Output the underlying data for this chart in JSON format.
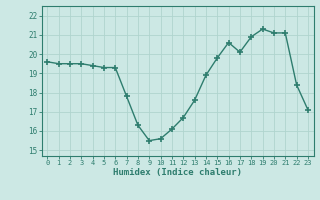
{
  "x": [
    0,
    1,
    2,
    3,
    4,
    5,
    6,
    7,
    8,
    9,
    10,
    11,
    12,
    13,
    14,
    15,
    16,
    17,
    18,
    19,
    20,
    21,
    22,
    23
  ],
  "y": [
    19.6,
    19.5,
    19.5,
    19.5,
    19.4,
    19.3,
    19.3,
    17.8,
    16.3,
    15.5,
    15.6,
    16.1,
    16.7,
    17.6,
    18.9,
    19.8,
    20.6,
    20.1,
    20.9,
    21.3,
    21.1,
    21.1,
    18.4,
    17.1
  ],
  "xlabel": "Humidex (Indice chaleur)",
  "xlim": [
    -0.5,
    23.5
  ],
  "ylim": [
    14.7,
    22.5
  ],
  "yticks": [
    15,
    16,
    17,
    18,
    19,
    20,
    21,
    22
  ],
  "xticks": [
    0,
    1,
    2,
    3,
    4,
    5,
    6,
    7,
    8,
    9,
    10,
    11,
    12,
    13,
    14,
    15,
    16,
    17,
    18,
    19,
    20,
    21,
    22,
    23
  ],
  "line_color": "#2e7d6e",
  "marker_color": "#2e7d6e",
  "bg_color": "#cce8e4",
  "grid_color": "#b0d4ce",
  "text_color": "#2e7d6e"
}
